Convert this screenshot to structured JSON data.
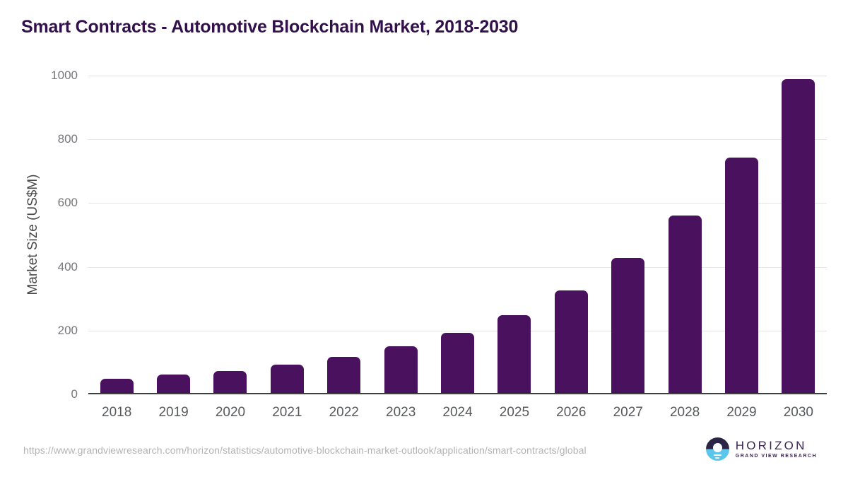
{
  "page": {
    "title": "Smart Contracts - Automotive Blockchain Market, 2018-2030"
  },
  "chart_data": {
    "type": "bar",
    "title": "Smart Contracts - Automotive Blockchain Market, 2018-2030",
    "categories": [
      "2018",
      "2019",
      "2020",
      "2021",
      "2022",
      "2023",
      "2024",
      "2025",
      "2026",
      "2027",
      "2028",
      "2029",
      "2030"
    ],
    "values": [
      45,
      57,
      70,
      90,
      114,
      148,
      190,
      245,
      322,
      425,
      558,
      742,
      990
    ],
    "xlabel": "",
    "ylabel": "Market Size (US$M)",
    "ylim": [
      0,
      1000
    ],
    "yticks": [
      0,
      200,
      400,
      600,
      800,
      1000
    ],
    "grid": "horizontal-light",
    "legend": "none",
    "bar_corner_radius": "rounded-top",
    "bar_color": "#4a115e"
  },
  "footer": {
    "source_url": "https://www.grandviewresearch.com/horizon/statistics/automotive-blockchain-market-outlook/application/smart-contracts/global",
    "logo": {
      "brand": "HORIZON",
      "tagline": "GRAND VIEW RESEARCH"
    }
  },
  "colors": {
    "background": "#ffffff",
    "title": "#321049",
    "bar": "#4a115e",
    "gridline": "#e4e4e7",
    "axis_line": "#3f3f41",
    "tick_label": "#76777a",
    "x_label": "#58595b",
    "axis_title": "#48484a",
    "url_text": "#b3b3b3",
    "logo_dark": "#2c2447",
    "logo_blue": "#5bc6ea",
    "logo_text": "#3b2650"
  }
}
